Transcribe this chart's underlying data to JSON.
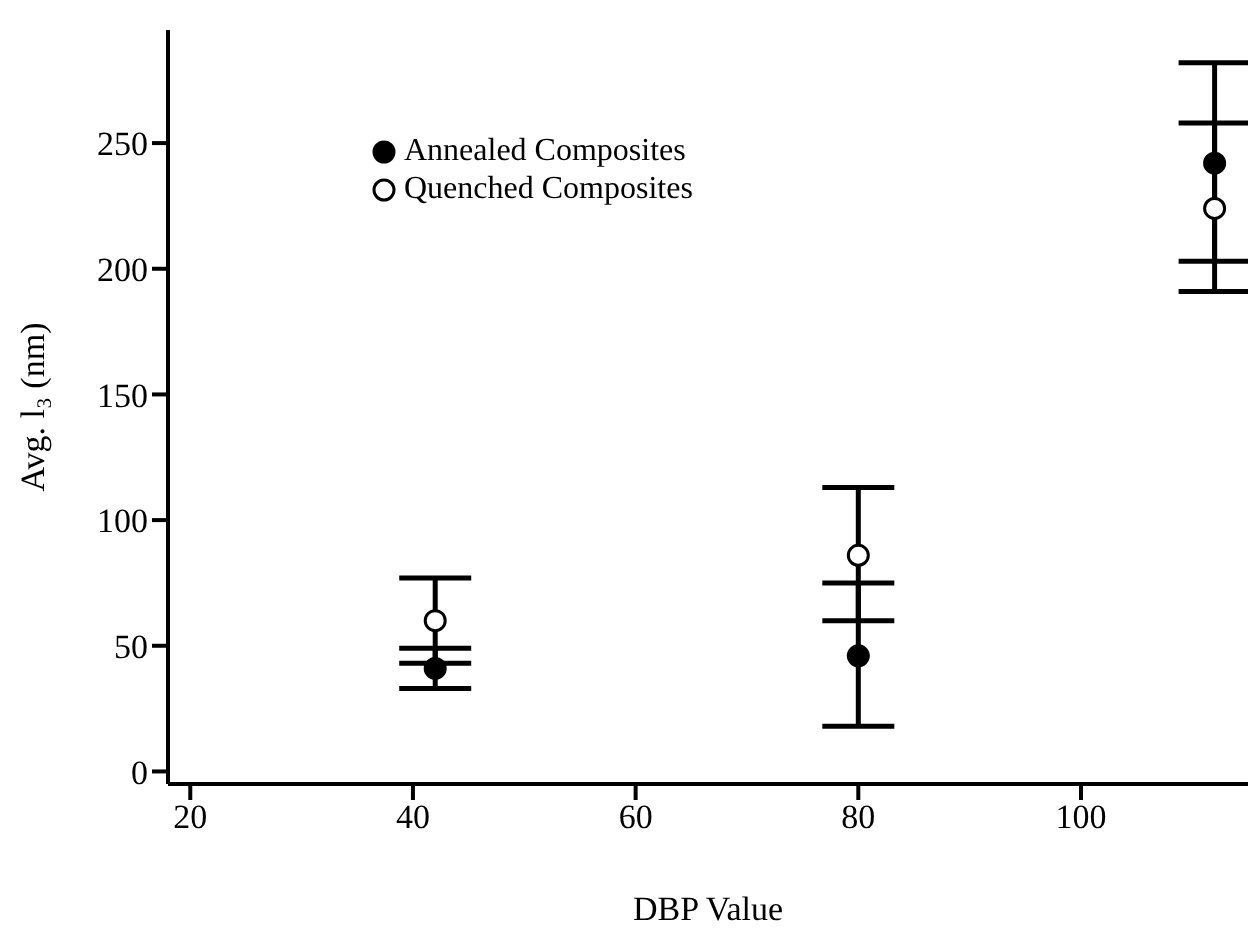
{
  "chart_data": {
    "type": "scatter",
    "xlabel": "DBP Value",
    "ylabel": "Avg. l₃ (nm)",
    "x": [
      42,
      80,
      112
    ],
    "series": [
      {
        "name": "Annealed Composites",
        "color": "#000000",
        "values": [
          41,
          46,
          242
        ],
        "errors": [
          [
            33,
            49
          ],
          [
            18,
            75
          ],
          [
            203,
            282
          ]
        ]
      },
      {
        "name": "Quenched Composites",
        "color": "#000000",
        "values": [
          60,
          86,
          224
        ],
        "errors": [
          [
            43,
            77
          ],
          [
            60,
            113
          ],
          [
            191,
            258
          ]
        ]
      }
    ],
    "xlim": [
      18,
      115
    ],
    "xticks": [
      20,
      40,
      60,
      80,
      100
    ],
    "ylim": [
      -5,
      295
    ],
    "yticks": [
      0,
      50,
      100,
      150,
      200,
      250
    ],
    "grid": false,
    "legend": "top left",
    "marker": "circle"
  }
}
